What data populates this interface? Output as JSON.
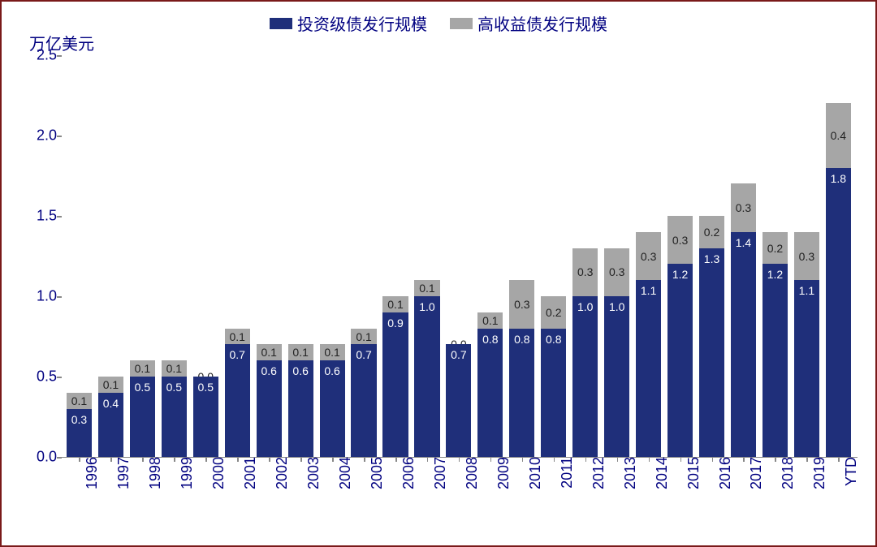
{
  "chart": {
    "type": "stacked-bar",
    "ylabel": "万亿美元",
    "ylim": [
      0.0,
      2.5
    ],
    "ytick_step": 0.5,
    "yticks": [
      "0.0",
      "0.5",
      "1.0",
      "1.5",
      "2.0",
      "2.5"
    ],
    "legend": [
      {
        "label": "投资级债发行规模",
        "color": "#1f2f7a"
      },
      {
        "label": "高收益债发行规模",
        "color": "#a6a6a6"
      }
    ],
    "colors": {
      "investment": "#1f2f7a",
      "high_yield": "#a6a6a6",
      "axis": "#888888",
      "text": "#000080",
      "background": "#ffffff",
      "border": "#7a1a1a"
    },
    "font": {
      "axis_label_size": 20,
      "tick_size": 18,
      "value_size": 14,
      "legend_size": 20
    },
    "bar_width_ratio": 0.8,
    "categories": [
      "1996",
      "1997",
      "1998",
      "1999",
      "2000",
      "2001",
      "2002",
      "2003",
      "2004",
      "2005",
      "2006",
      "2007",
      "2008",
      "2009",
      "2010",
      "2011",
      "2012",
      "2013",
      "2014",
      "2015",
      "2016",
      "2017",
      "2018",
      "2019",
      "YTD"
    ],
    "series": {
      "investment": [
        0.3,
        0.4,
        0.5,
        0.5,
        0.5,
        0.7,
        0.6,
        0.6,
        0.6,
        0.7,
        0.9,
        1.0,
        0.7,
        0.8,
        0.8,
        0.8,
        1.0,
        1.0,
        1.1,
        1.2,
        1.3,
        1.4,
        1.2,
        1.1,
        1.8
      ],
      "high_yield": [
        0.1,
        0.1,
        0.1,
        0.1,
        0.0,
        0.1,
        0.1,
        0.1,
        0.1,
        0.1,
        0.1,
        0.1,
        0.0,
        0.1,
        0.3,
        0.2,
        0.3,
        0.3,
        0.3,
        0.3,
        0.2,
        0.3,
        0.2,
        0.3,
        0.4
      ]
    },
    "value_labels": {
      "investment": [
        "0.3",
        "0.4",
        "0.5",
        "0.5",
        "0.5",
        "0.7",
        "0.6",
        "0.6",
        "0.6",
        "0.7",
        "0.9",
        "1.0",
        "0.7",
        "0.8",
        "0.8",
        "0.8",
        "1.0",
        "1.0",
        "1.1",
        "1.2",
        "1.3",
        "1.4",
        "1.2",
        "1.1",
        "1.8"
      ],
      "high_yield": [
        "0.1",
        "0.1",
        "0.1",
        "0.1",
        "0.0",
        "0.1",
        "0.1",
        "0.1",
        "0.1",
        "0.1",
        "0.1",
        "0.1",
        "0.0",
        "0.1",
        "0.3",
        "0.2",
        "0.3",
        "0.3",
        "0.3",
        "0.3",
        "0.2",
        "0.3",
        "0.2",
        "0.3",
        "0.4"
      ]
    }
  }
}
